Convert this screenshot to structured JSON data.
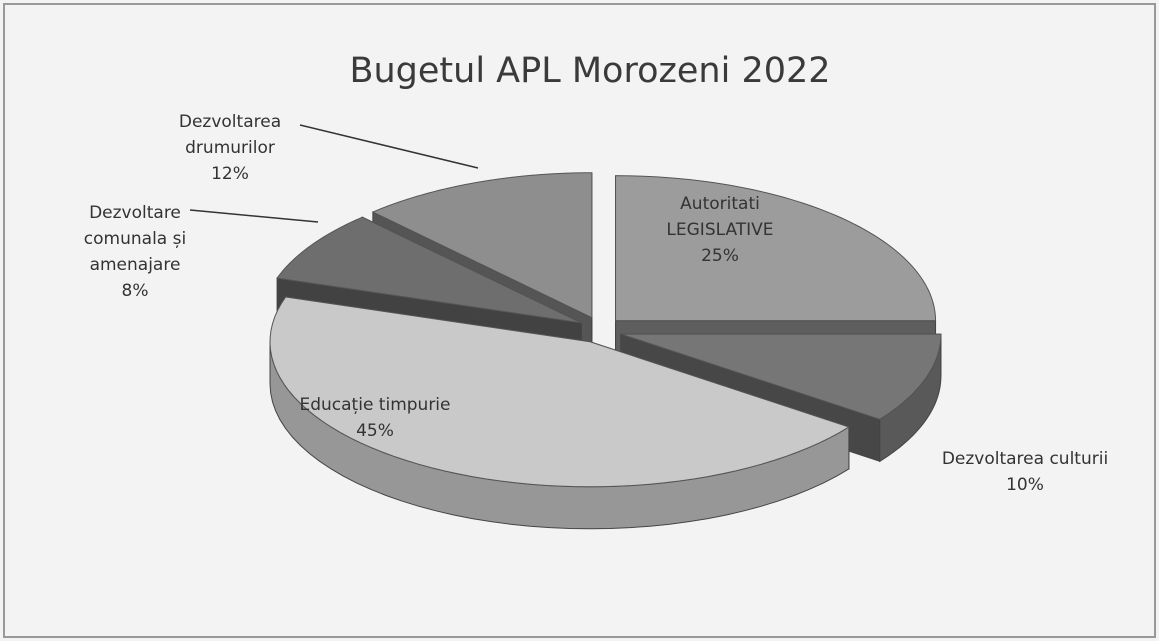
{
  "chart_data": {
    "type": "pie",
    "title": "Bugetul APL Morozeni 2022",
    "categories": [
      "Autoritati LEGISLATIVE",
      "Dezvoltarea culturii",
      "Educație timpurie",
      "Dezvoltare comunala și amenajare",
      "Dezvoltarea drumurilor"
    ],
    "values": [
      25,
      10,
      45,
      8,
      12
    ],
    "value_labels": [
      "25%",
      "10%",
      "45%",
      "8%",
      "12%"
    ],
    "colors": [
      "#9c9c9c",
      "#767676",
      "#c9c9c9",
      "#6e6e6e",
      "#8e8e8e"
    ]
  }
}
